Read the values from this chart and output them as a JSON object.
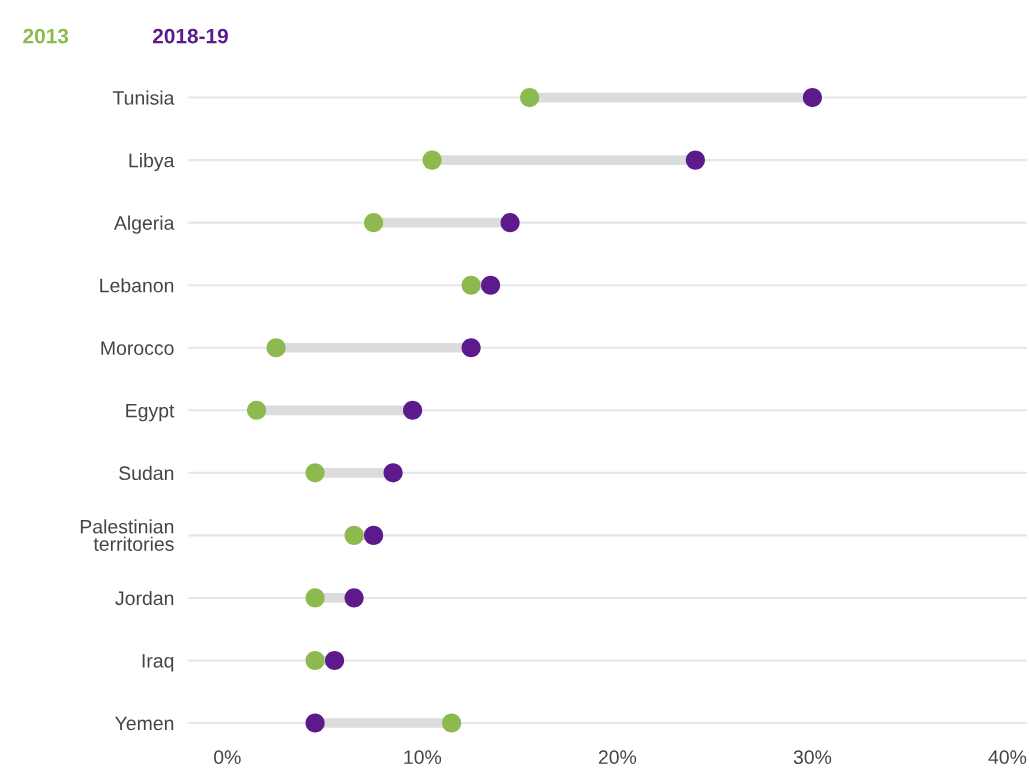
{
  "chart_data": {
    "type": "scatter",
    "categories": [
      "Tunisia",
      "Libya",
      "Algeria",
      "Lebanon",
      "Morocco",
      "Egypt",
      "Sudan",
      "Palestinian\nterritories",
      "Jordan",
      "Iraq",
      "Yemen"
    ],
    "orientation": "horizontal",
    "series": [
      {
        "name": "2013",
        "color": "#8dba4f",
        "values": [
          15.5,
          10.5,
          7.5,
          12.5,
          2.5,
          1.5,
          4.5,
          6.5,
          4.5,
          4.5,
          11.5
        ]
      },
      {
        "name": "2018-19",
        "color": "#5c1a8c",
        "values": [
          30,
          24,
          14.5,
          13.5,
          12.5,
          9.5,
          8.5,
          7.5,
          6.5,
          5.5,
          4.5
        ]
      }
    ],
    "xlim": [
      -2,
      41
    ],
    "xticks": [
      {
        "value": 0,
        "label": "0%"
      },
      {
        "value": 10,
        "label": "10%"
      },
      {
        "value": 20,
        "label": "20%"
      },
      {
        "value": 30,
        "label": "30%"
      },
      {
        "value": 40,
        "label": "40%"
      }
    ],
    "grid": "y",
    "legend": "top left",
    "marker": "circle"
  }
}
